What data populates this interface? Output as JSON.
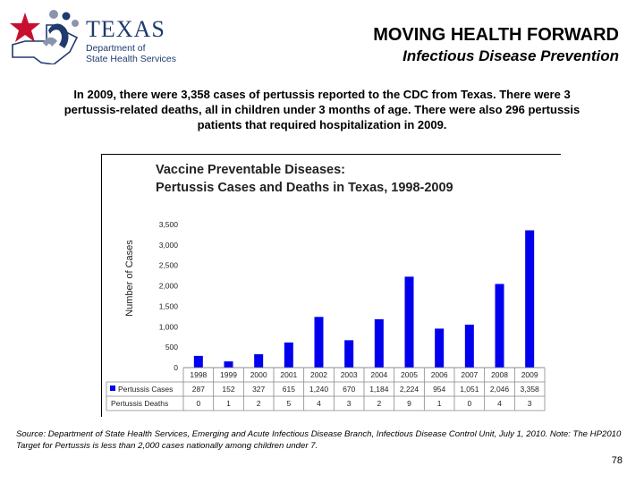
{
  "header": {
    "logo_title": "TEXAS",
    "logo_subtitle_line1": "Department of",
    "logo_subtitle_line2": "State Health Services",
    "title": "MOVING HEALTH FORWARD",
    "subtitle": "Infectious Disease Prevention"
  },
  "intro_text": "In 2009, there were 3,358 cases of pertussis reported to the CDC from Texas.  There were 3 pertussis-related deaths, all in children under 3 months of age.  There were also 296 pertussis patients that required hospitalization in 2009.",
  "chart_data": {
    "type": "bar",
    "title_line1": "Vaccine Preventable Diseases:",
    "title_line2": "Pertussis Cases and Deaths in Texas, 1998-2009",
    "ylabel": "Number of Cases",
    "ylim": [
      0,
      3500
    ],
    "yticks": [
      "3,500",
      "3,000",
      "2,500",
      "2,000",
      "1,500",
      "1,000",
      "500",
      "0"
    ],
    "categories": [
      "1998",
      "1999",
      "2000",
      "2001",
      "2002",
      "2003",
      "2004",
      "2005",
      "2006",
      "2007",
      "2008",
      "2009"
    ],
    "series": [
      {
        "name": "Pertussis Cases",
        "color": "#0000ee",
        "values": [
          287,
          152,
          327,
          615,
          1240,
          670,
          1184,
          2224,
          954,
          1051,
          2046,
          3358
        ],
        "labels": [
          "287",
          "152",
          "327",
          "615",
          "1,240",
          "670",
          "1,184",
          "2,224",
          "954",
          "1,051",
          "2,046",
          "3,358"
        ]
      },
      {
        "name": "Pertussis Deaths",
        "values": [
          0,
          1,
          2,
          5,
          4,
          3,
          2,
          9,
          1,
          0,
          4,
          3
        ],
        "labels": [
          "0",
          "1",
          "2",
          "5",
          "4",
          "3",
          "2",
          "9",
          "1",
          "0",
          "4",
          "3"
        ]
      }
    ],
    "grid": false,
    "legend_placement": "data table below x-axis"
  },
  "source_text": "Source: Department of State Health Services, Emerging and Acute Infectious Disease Branch, Infectious Disease Control Unit, July 1, 2010. Note: The HP2010 Target for Pertussis is less than 2,000 cases nationally among children under 7.",
  "page_number": "78",
  "colors": {
    "bar": "#0000ee",
    "logo_navy": "#1f3a6e",
    "logo_red": "#c8102e"
  }
}
